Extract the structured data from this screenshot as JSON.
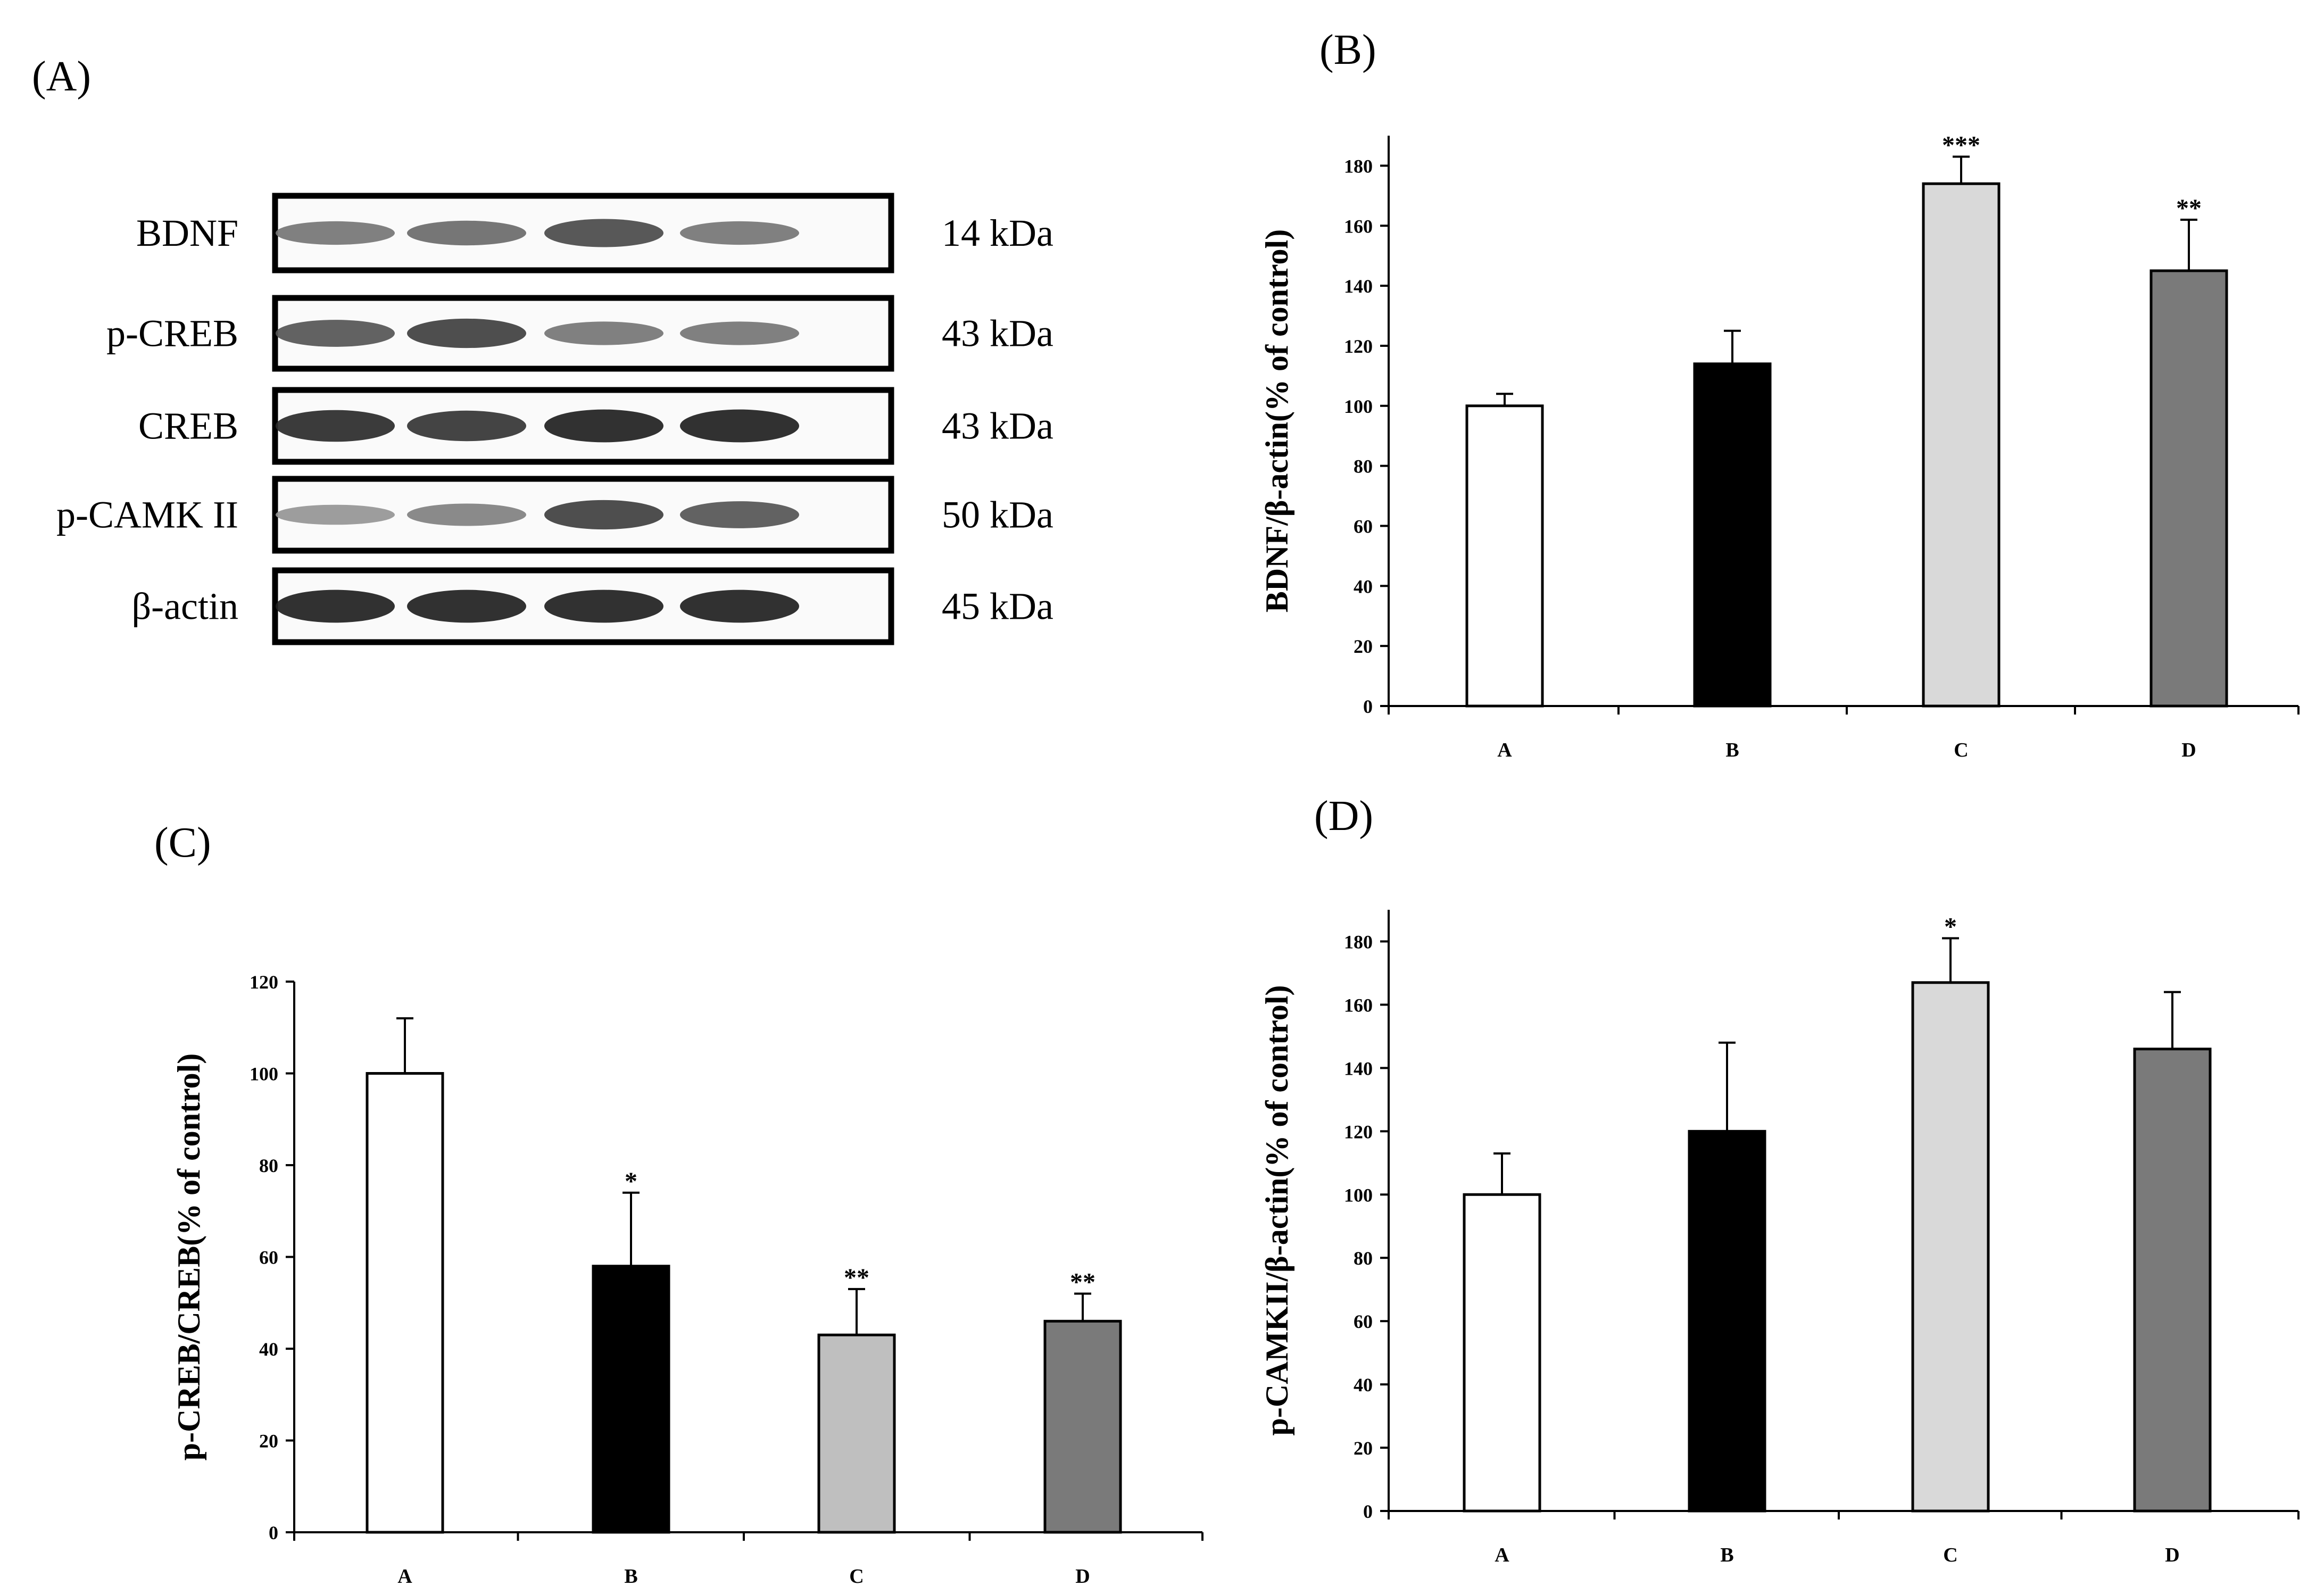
{
  "panels": {
    "A": "(A)",
    "B": "(B)",
    "C": "(C)",
    "D": "(D)"
  },
  "western_blot": {
    "rows": [
      {
        "protein": "BDNF",
        "size": "14 kDa",
        "band_intensity": [
          0.55,
          0.6,
          0.75,
          0.55
        ]
      },
      {
        "protein": "p-CREB",
        "size": "43 kDa",
        "band_intensity": [
          0.7,
          0.8,
          0.55,
          0.55
        ]
      },
      {
        "protein": "CREB",
        "size": "43 kDa",
        "band_intensity": [
          0.9,
          0.85,
          0.95,
          0.95
        ]
      },
      {
        "protein": "p-CAMK II",
        "size": "50 kDa",
        "band_intensity": [
          0.4,
          0.5,
          0.8,
          0.7
        ]
      },
      {
        "protein": "β-actin",
        "size": "45 kDa",
        "band_intensity": [
          0.95,
          0.95,
          0.95,
          0.95
        ]
      }
    ]
  },
  "chart_data": [
    {
      "panel": "B",
      "type": "bar",
      "categories": [
        "A",
        "B",
        "C",
        "D"
      ],
      "values": [
        100,
        114,
        174,
        145
      ],
      "errors": [
        4,
        11,
        9,
        17
      ],
      "significance": [
        "",
        "",
        "***",
        "**"
      ],
      "colors": [
        "#ffffff",
        "#000000",
        "#d9d9d9",
        "#7a7a7a"
      ],
      "ylabel": "BDNF/β-actin(% of control)",
      "ylim": [
        0,
        190
      ],
      "yticks": [
        0,
        20,
        40,
        60,
        80,
        100,
        120,
        140,
        160,
        180
      ]
    },
    {
      "panel": "C",
      "type": "bar",
      "categories": [
        "A",
        "B",
        "C",
        "D"
      ],
      "values": [
        100,
        58,
        43,
        46
      ],
      "errors": [
        12,
        16,
        10,
        6
      ],
      "significance": [
        "",
        "*",
        "**",
        "**"
      ],
      "colors": [
        "#ffffff",
        "#000000",
        "#bfbfbf",
        "#7a7a7a"
      ],
      "ylabel": "p-CREB/CREB(% of control)",
      "ylim": [
        0,
        120
      ],
      "yticks": [
        0,
        20,
        40,
        60,
        80,
        100,
        120
      ]
    },
    {
      "panel": "D",
      "type": "bar",
      "categories": [
        "A",
        "B",
        "C",
        "D"
      ],
      "values": [
        100,
        120,
        167,
        146
      ],
      "errors": [
        13,
        28,
        14,
        18
      ],
      "significance": [
        "",
        "",
        "*",
        ""
      ],
      "colors": [
        "#ffffff",
        "#000000",
        "#d9d9d9",
        "#7a7a7a"
      ],
      "ylabel": "p-CAMKII/β-actin(% of control)",
      "ylim": [
        0,
        190
      ],
      "yticks": [
        0,
        20,
        40,
        60,
        80,
        100,
        120,
        140,
        160,
        180
      ]
    }
  ]
}
